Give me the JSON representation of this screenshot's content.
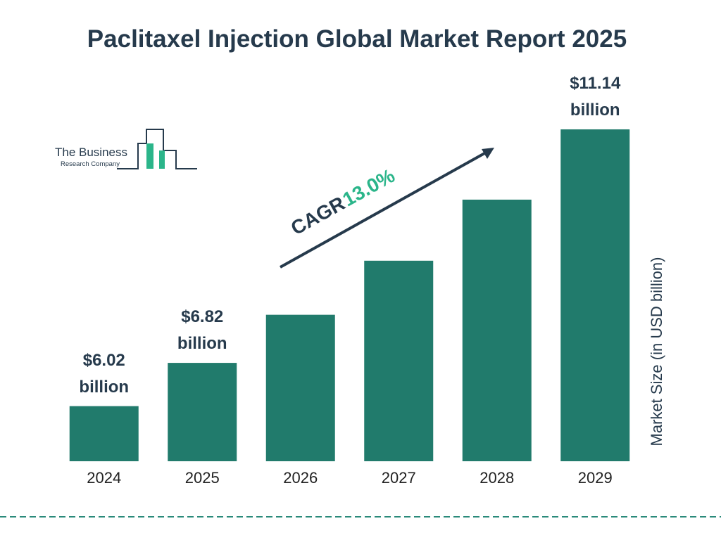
{
  "chart_data": {
    "type": "bar",
    "title": "Paclitaxel Injection Global Market Report 2025",
    "categories": [
      "2024",
      "2025",
      "2026",
      "2027",
      "2028",
      "2029"
    ],
    "values": [
      6.02,
      6.82,
      7.71,
      8.71,
      9.84,
      11.14
    ],
    "value_labels": [
      "$6.02 billion",
      "$6.82 billion",
      null,
      null,
      null,
      "$11.14 billion"
    ],
    "color": "#217b6c",
    "ylim": [
      5,
      11.4
    ],
    "y_axis_label": "Market Size (in USD billion)",
    "cagr_label": "CAGR",
    "cagr_value": "13.0%",
    "logo_line1": "The Business",
    "logo_line2": "Research Company"
  }
}
